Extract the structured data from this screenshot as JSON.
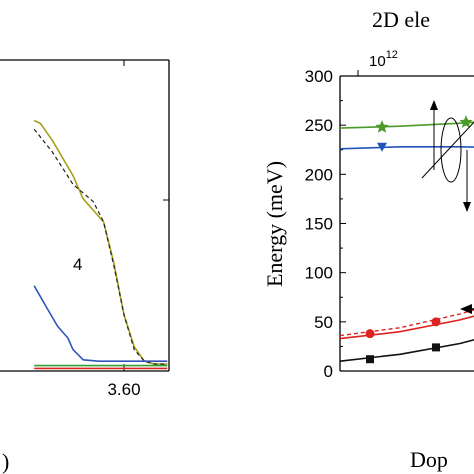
{
  "chart_data": [
    {
      "type": "line",
      "xlabel": ")",
      "x_tick_labels": [
        "3.60"
      ],
      "curve_label": "4",
      "series": [
        {
          "color": "#a8a018",
          "style": "solid",
          "x": [
            3.424,
            3.436,
            3.46,
            3.48,
            3.5,
            3.52,
            3.54,
            3.56,
            3.58,
            3.6,
            3.62,
            3.64,
            3.66,
            3.685
          ],
          "y": [
            0.85,
            0.84,
            0.78,
            0.72,
            0.66,
            0.58,
            0.54,
            0.5,
            0.36,
            0.18,
            0.07,
            0.02,
            0.01,
            0.01
          ]
        },
        {
          "color": "#222222",
          "style": "dashed",
          "x": [
            3.424,
            3.46,
            3.5,
            3.54,
            3.56,
            3.58,
            3.6,
            3.62,
            3.64,
            3.66,
            3.685
          ],
          "y": [
            0.82,
            0.74,
            0.63,
            0.57,
            0.5,
            0.35,
            0.18,
            0.06,
            0.02,
            0.01,
            0.01
          ]
        },
        {
          "color": "#3355bb",
          "style": "solid",
          "x": [
            3.424,
            3.45,
            3.47,
            3.49,
            3.5,
            3.52,
            3.55,
            3.6,
            3.65,
            3.685
          ],
          "y": [
            0.28,
            0.2,
            0.14,
            0.1,
            0.06,
            0.025,
            0.02,
            0.02,
            0.02,
            0.02
          ]
        },
        {
          "color": "#33a033",
          "style": "solid",
          "x": [
            3.424,
            3.5,
            3.6,
            3.685
          ],
          "y": [
            0.005,
            0.005,
            0.005,
            0.005
          ]
        },
        {
          "color": "#dd2222",
          "style": "solid",
          "x": [
            3.424,
            3.5,
            3.6,
            3.685
          ],
          "y": [
            -0.005,
            -0.005,
            -0.005,
            -0.005
          ]
        }
      ]
    },
    {
      "type": "scatter",
      "title": "2D ele",
      "top_axis_label": "10^12",
      "top_axis_label_base": "10",
      "top_axis_label_exp": "12",
      "ylabel": "Energy  (meV)",
      "xlabel": "Dop",
      "ylim": [
        0,
        300
      ],
      "y_ticks": [
        0,
        50,
        100,
        150,
        200,
        250,
        300
      ],
      "xlim": [
        0,
        1.5
      ],
      "series": [
        {
          "name_marker": "star",
          "color": "#4c9a2a",
          "points_x": [
            0.35,
            1.05
          ],
          "points_y": [
            248,
            253
          ],
          "line_x": [
            0,
            0.5,
            1.0,
            1.5
          ],
          "line_y": [
            247,
            249,
            252,
            256
          ]
        },
        {
          "name_marker": "triangle-down",
          "color": "#2255bb",
          "points_x": [
            0.35
          ],
          "points_y": [
            228
          ],
          "line_x": [
            0,
            0.5,
            1.0,
            1.5
          ],
          "line_y": [
            226,
            228,
            228,
            227
          ]
        },
        {
          "name_marker": "circle",
          "color": "#dd2222",
          "points_x": [
            0.25,
            0.8
          ],
          "points_y": [
            38,
            50
          ],
          "line_x": [
            0,
            0.5,
            1.0,
            1.5
          ],
          "line_y": [
            33,
            40,
            52,
            68
          ],
          "dashed_x": [
            0,
            0.5,
            1.0,
            1.5
          ],
          "dashed_y": [
            36,
            44,
            58,
            76
          ]
        },
        {
          "name_marker": "square",
          "color": "#111111",
          "points_x": [
            0.25,
            0.8
          ],
          "points_y": [
            12,
            24
          ],
          "line_x": [
            0,
            0.5,
            1.0,
            1.5
          ],
          "line_y": [
            10,
            17,
            28,
            44
          ]
        }
      ]
    }
  ]
}
